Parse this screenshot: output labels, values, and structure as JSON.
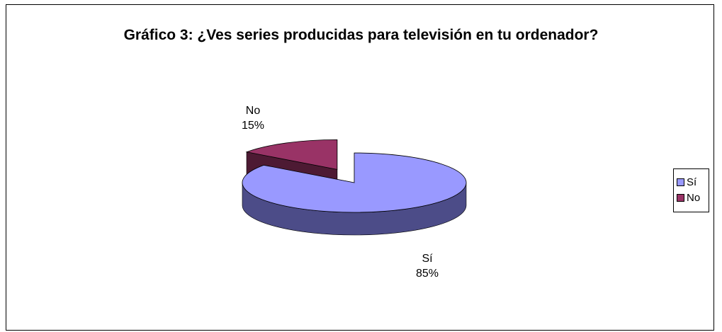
{
  "chart_data": {
    "type": "pie",
    "title": "Gráfico 3: ¿Ves series producidas para televisión en tu ordenador?",
    "categories": [
      "Sí",
      "No"
    ],
    "values": [
      85,
      15
    ],
    "labels": [
      "85%",
      "15%"
    ],
    "colors": [
      "#9999ff",
      "#993366"
    ],
    "side_colors": [
      "#4c4c88",
      "#4d1a33"
    ],
    "exploded": "No",
    "legend": "right",
    "three_d": true
  }
}
